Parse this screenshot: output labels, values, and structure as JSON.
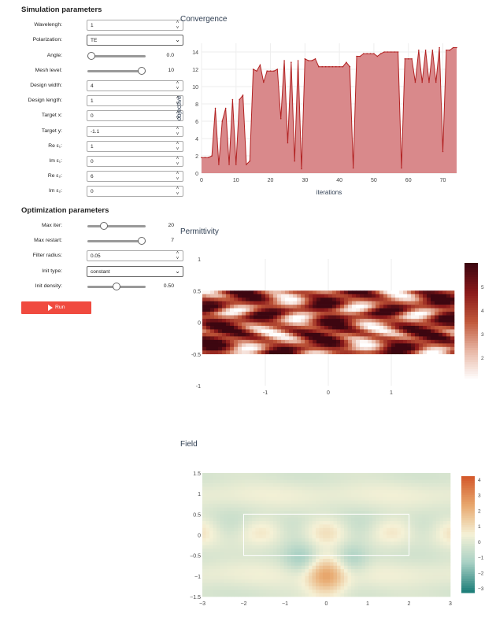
{
  "sim_panel": {
    "title": "Simulation parameters",
    "wavelength": {
      "label": "Wavelengh:",
      "value": "1"
    },
    "polarization": {
      "label": "Polarization:",
      "value": "TE"
    },
    "angle": {
      "label": "Angle:",
      "value": "0.0",
      "level": 0.0
    },
    "mesh_level": {
      "label": "Mesh level:",
      "value": "10",
      "level": 1.0
    },
    "design_width": {
      "label": "Design width:",
      "value": "4"
    },
    "design_length": {
      "label": "Design length:",
      "value": "1"
    },
    "target_x": {
      "label": "Target x:",
      "value": "0"
    },
    "target_y": {
      "label": "Target y:",
      "value": "-1.1"
    },
    "re_e1": {
      "label": "Re ε₁:",
      "value": "1"
    },
    "im_e1": {
      "label": "Im ε₁:",
      "value": "0"
    },
    "re_e2": {
      "label": "Re ε₂:",
      "value": "6"
    },
    "im_e2": {
      "label": "Im ε₂:",
      "value": "0"
    }
  },
  "opt_panel": {
    "title": "Optimization parameters",
    "max_iter": {
      "label": "Max iter:",
      "value": "20",
      "level": 0.25
    },
    "max_restart": {
      "label": "Max restart:",
      "value": "7",
      "level": 1.0
    },
    "filter_radius": {
      "label": "Filter radius:",
      "value": "0.05"
    },
    "init_type": {
      "label": "Init type:",
      "value": "constant"
    },
    "init_density": {
      "label": "Init density:",
      "value": "0.50",
      "level": 0.5
    },
    "run_label": "Run"
  },
  "sections": {
    "convergence": "Convergence",
    "permittivity": "Permittivity",
    "field": "Field"
  },
  "colors": {
    "accent": "#f04a3f",
    "convergence_fill": "#d9898b",
    "convergence_line": "#b22222"
  },
  "chart_data": [
    {
      "type": "area",
      "title": "Convergence",
      "xlabel": "iterations",
      "ylabel": "objective",
      "xlim": [
        0,
        74
      ],
      "ylim": [
        0,
        15
      ],
      "xticks": [
        "0",
        "10",
        "20",
        "30",
        "40",
        "50",
        "60",
        "70"
      ],
      "yticks": [
        "0",
        "2",
        "4",
        "6",
        "8",
        "10",
        "12",
        "14"
      ],
      "x": [
        0,
        1,
        2,
        3,
        4,
        5,
        6,
        7,
        8,
        9,
        10,
        11,
        12,
        13,
        14,
        15,
        16,
        17,
        18,
        19,
        20,
        21,
        22,
        23,
        24,
        25,
        26,
        27,
        28,
        29,
        30,
        31,
        32,
        33,
        34,
        35,
        36,
        37,
        38,
        39,
        40,
        41,
        42,
        43,
        44,
        45,
        46,
        47,
        48,
        49,
        50,
        51,
        52,
        53,
        54,
        55,
        56,
        57,
        58,
        59,
        60,
        61,
        62,
        63,
        64,
        65,
        66,
        67,
        68,
        69,
        70,
        71,
        72,
        73,
        74
      ],
      "y": [
        1.8,
        1.8,
        1.8,
        2.0,
        7.5,
        1.0,
        6.0,
        7.5,
        1.0,
        8.5,
        1.0,
        8.5,
        9.0,
        1.0,
        1.4,
        12.0,
        11.8,
        12.5,
        10.5,
        11.8,
        11.8,
        11.8,
        12.0,
        6.3,
        13.0,
        3.5,
        12.8,
        1.4,
        13.0,
        0.5,
        13.2,
        13.0,
        13.0,
        13.2,
        12.3,
        12.3,
        12.3,
        12.3,
        12.3,
        12.3,
        12.3,
        12.3,
        12.8,
        12.3,
        0.6,
        13.5,
        13.5,
        13.8,
        13.8,
        13.8,
        13.8,
        13.5,
        13.8,
        14.0,
        14.0,
        14.0,
        14.0,
        14.0,
        0.6,
        13.2,
        13.2,
        13.2,
        10.5,
        14.2,
        10.5,
        14.2,
        10.5,
        14.2,
        10.5,
        14.5,
        2.5,
        14.2,
        14.2,
        14.5,
        14.5
      ]
    },
    {
      "type": "heatmap",
      "title": "Permittivity",
      "xticks": [
        "-1",
        "0",
        "1"
      ],
      "yticks": [
        "1",
        "0.5",
        "0",
        "-0.5",
        "-1"
      ],
      "colorbar_ticks": [
        "5",
        "4",
        "3",
        "2"
      ],
      "colorscale": [
        "#ffffff",
        "#e8b7a5",
        "#c0583a",
        "#8b1a1a",
        "#3d0610"
      ],
      "zrange": [
        1,
        6
      ]
    },
    {
      "type": "heatmap",
      "title": "Field",
      "xticks": [
        "-3",
        "-2",
        "-1",
        "0",
        "1",
        "2",
        "3"
      ],
      "yticks": [
        "1.5",
        "1",
        "0.5",
        "0",
        "-0.5",
        "-1",
        "-1.5"
      ],
      "colorbar_ticks": [
        "4",
        "3",
        "2",
        "1",
        "0",
        "-1",
        "-2",
        "-3"
      ],
      "colorscale": [
        "#1f7f7a",
        "#a7d0c4",
        "#f5f1d6",
        "#e8a96f",
        "#d45a2c"
      ],
      "zrange": [
        -3.3,
        4.2
      ]
    }
  ]
}
